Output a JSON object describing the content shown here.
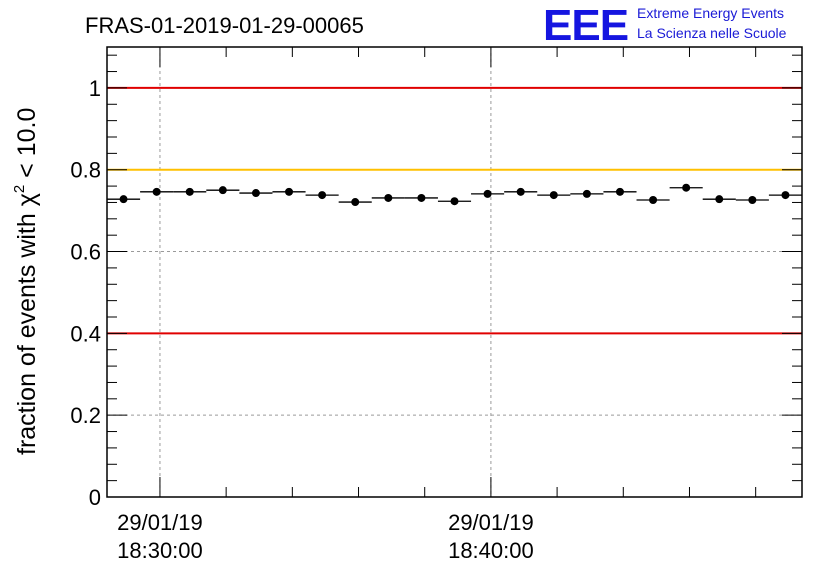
{
  "chart_data": {
    "type": "scatter",
    "title": "FRAS-01-2019-01-29-00065",
    "ylabel_main": "fraction of events with ",
    "ylabel_symbol": "χ",
    "ylabel_sup": "2",
    "ylabel_tail": " < 10.0",
    "ylim": [
      0,
      1.1
    ],
    "yticks": [
      {
        "value": 0,
        "label": "0"
      },
      {
        "value": 0.2,
        "label": "0.2"
      },
      {
        "value": 0.4,
        "label": "0.4"
      },
      {
        "value": 0.6,
        "label": "0.6"
      },
      {
        "value": 0.8,
        "label": "0.8"
      },
      {
        "value": 1,
        "label": "1"
      }
    ],
    "xlim_minutes": [
      28.4,
      49.4
    ],
    "xticks": [
      {
        "minute": 30,
        "date": "29/01/19",
        "time": "18:30:00"
      },
      {
        "minute": 40,
        "date": "29/01/19",
        "time": "18:40:00"
      }
    ],
    "x_minor_step_minutes": 2,
    "bin_width_minutes": 1,
    "x_minutes": [
      28.9,
      29.9,
      30.9,
      31.9,
      32.9,
      33.9,
      34.9,
      35.9,
      36.9,
      37.9,
      38.9,
      39.9,
      40.9,
      41.9,
      42.9,
      43.9,
      44.9,
      45.9,
      46.9,
      47.9,
      48.9
    ],
    "values": [
      0.728,
      0.746,
      0.746,
      0.75,
      0.743,
      0.746,
      0.738,
      0.721,
      0.731,
      0.731,
      0.723,
      0.741,
      0.746,
      0.738,
      0.741,
      0.746,
      0.726,
      0.756,
      0.728,
      0.726,
      0.738
    ],
    "reference_lines": [
      {
        "value": 1.0,
        "color": "#e00000"
      },
      {
        "value": 0.8,
        "color": "#ffc000"
      },
      {
        "value": 0.4,
        "color": "#e00000"
      }
    ],
    "grid": "dashed",
    "point_color": "#000000"
  },
  "logo": {
    "mark": "EEE",
    "line1": "Extreme Energy Events",
    "line2": "La Scienza nelle Scuole",
    "color": "#1515e0"
  }
}
